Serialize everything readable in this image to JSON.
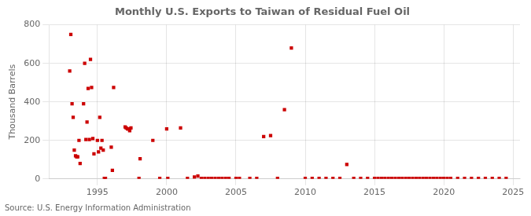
{
  "chart_data": {
    "type": "scatter",
    "title": "Monthly U.S. Exports to Taiwan of Residual Fuel Oil",
    "ylabel": "Thousand Barrels",
    "source": "Source: U.S. Energy Information Administration",
    "color": "#cc0000",
    "marker": "square",
    "grid": true,
    "xlim": [
      1991.5,
      2025.5
    ],
    "ylim": [
      0,
      800
    ],
    "xticks": [
      1995,
      2000,
      2005,
      2010,
      2015,
      2020,
      2025
    ],
    "yticks": [
      0,
      200,
      400,
      600,
      800
    ],
    "x": [
      1993.0,
      1993.08,
      1993.17,
      1993.25,
      1993.33,
      1993.42,
      1993.5,
      1993.58,
      1993.67,
      1993.75,
      1994.0,
      1994.08,
      1994.17,
      1994.25,
      1994.33,
      1994.42,
      1994.5,
      1994.58,
      1994.67,
      1994.75,
      1995.0,
      1995.08,
      1995.17,
      1995.25,
      1995.33,
      1995.42,
      1995.5,
      1995.58,
      1996.0,
      1996.08,
      1996.17,
      1997.0,
      1997.08,
      1997.17,
      1997.25,
      1997.33,
      1997.42,
      1998.0,
      1998.08,
      1999.0,
      1999.5,
      2000.0,
      2000.08,
      2001.0,
      2001.5,
      2002.0,
      2002.25,
      2002.5,
      2002.75,
      2003.0,
      2003.25,
      2003.5,
      2003.75,
      2004.0,
      2004.25,
      2004.5,
      2005.0,
      2005.25,
      2006.0,
      2006.5,
      2007.0,
      2007.5,
      2008.0,
      2008.5,
      2009.0,
      2010.0,
      2010.5,
      2011.0,
      2011.5,
      2012.0,
      2012.5,
      2013.0,
      2013.5,
      2014.0,
      2014.5,
      2015.0,
      2015.25,
      2015.5,
      2015.75,
      2016.0,
      2016.25,
      2016.5,
      2016.75,
      2017.0,
      2017.25,
      2017.5,
      2017.75,
      2018.0,
      2018.25,
      2018.5,
      2018.75,
      2019.0,
      2019.25,
      2019.5,
      2019.75,
      2020.0,
      2020.25,
      2020.5,
      2021.0,
      2021.5,
      2022.0,
      2022.5,
      2023.0,
      2023.5,
      2024.0,
      2024.5
    ],
    "values": [
      560,
      750,
      390,
      320,
      150,
      120,
      115,
      115,
      200,
      80,
      390,
      600,
      205,
      295,
      470,
      205,
      620,
      475,
      210,
      130,
      200,
      140,
      320,
      160,
      200,
      150,
      3,
      3,
      165,
      45,
      475,
      270,
      265,
      260,
      260,
      250,
      265,
      3,
      105,
      200,
      3,
      260,
      3,
      265,
      3,
      10,
      15,
      3,
      3,
      3,
      3,
      3,
      3,
      3,
      3,
      3,
      3,
      3,
      3,
      3,
      220,
      225,
      3,
      360,
      680,
      3,
      3,
      3,
      3,
      3,
      3,
      75,
      3,
      3,
      3,
      3,
      3,
      3,
      3,
      3,
      3,
      3,
      3,
      3,
      3,
      3,
      3,
      3,
      3,
      3,
      3,
      3,
      3,
      3,
      3,
      3,
      3,
      3,
      3,
      3,
      3,
      3,
      3,
      3,
      3,
      3
    ]
  }
}
